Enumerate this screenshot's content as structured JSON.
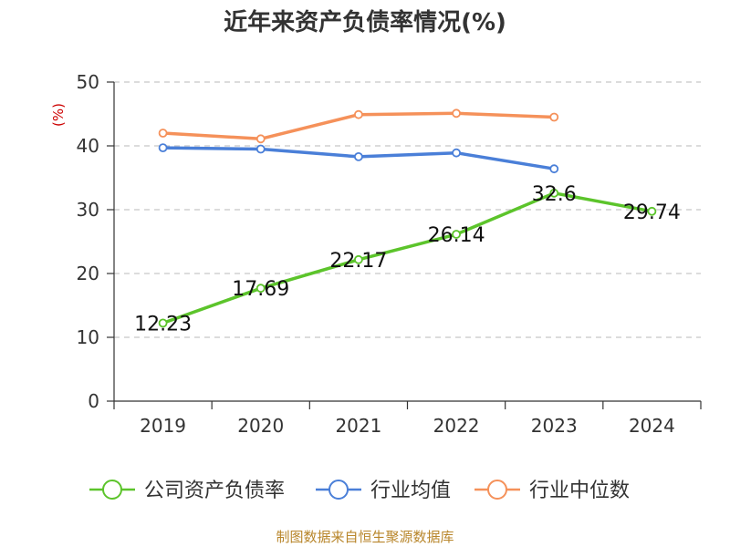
{
  "chart_data": {
    "type": "line",
    "title": "近年来资产负债率情况(%)",
    "ylabel": "(%)",
    "xlabel": "",
    "categories": [
      "2019",
      "2020",
      "2021",
      "2022",
      "2023",
      "2024"
    ],
    "ylim": [
      0,
      50
    ],
    "yticks": [
      0,
      10,
      20,
      30,
      40,
      50
    ],
    "grid": true,
    "legend_position": "bottom",
    "series": [
      {
        "name": "公司资产负债率",
        "color": "#5cc42b",
        "values": [
          12.23,
          17.69,
          22.17,
          26.14,
          32.6,
          29.74
        ],
        "show_labels": true
      },
      {
        "name": "行业均值",
        "color": "#4a7fd8",
        "values": [
          39.7,
          39.5,
          38.3,
          38.9,
          36.4,
          null
        ],
        "show_labels": false
      },
      {
        "name": "行业中位数",
        "color": "#f5915a",
        "values": [
          42.0,
          41.1,
          44.9,
          45.1,
          44.5,
          null
        ],
        "show_labels": false
      }
    ]
  },
  "footer": {
    "source": "制图数据来自恒生聚源数据库"
  }
}
